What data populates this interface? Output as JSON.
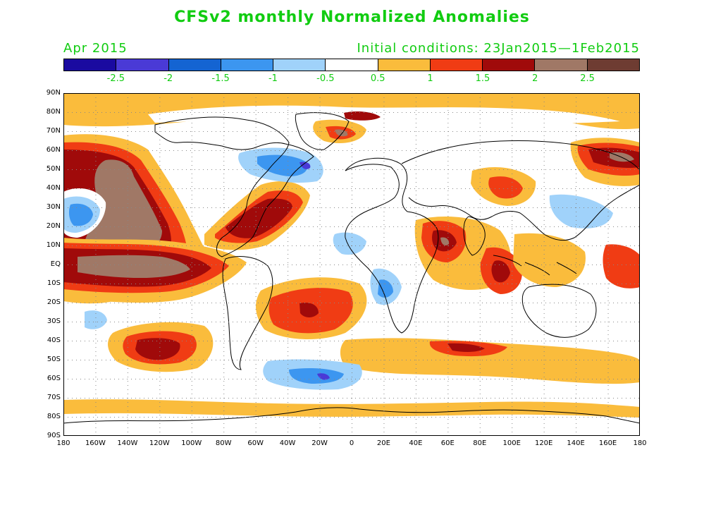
{
  "header": {
    "title": "CFSv2 monthly Normalized Anomalies",
    "month": "Apr 2015",
    "initial_conditions": "Initial conditions: 23Jan2015—1Feb2015"
  },
  "colorbar": {
    "colors": [
      "#1a0aa0",
      "#4a3ad6",
      "#1464d2",
      "#3c96f0",
      "#a0d2fa",
      "#ffffff",
      "#fabc3c",
      "#f03c14",
      "#a00a0a",
      "#a07866",
      "#6e3c32"
    ],
    "labels": [
      "-2.5",
      "-2",
      "-1.5",
      "-1",
      "-0.5",
      "0.5",
      "1",
      "1.5",
      "2",
      "2.5"
    ]
  },
  "map": {
    "variable": "Normalized Anomalies",
    "lat_labels": [
      "90N",
      "80N",
      "70N",
      "60N",
      "50N",
      "40N",
      "30N",
      "20N",
      "10N",
      "EQ",
      "10S",
      "20S",
      "30S",
      "40S",
      "50S",
      "60S",
      "70S",
      "80S",
      "90S"
    ],
    "lon_labels": [
      "180",
      "160W",
      "140W",
      "120W",
      "100W",
      "80W",
      "60W",
      "40W",
      "20W",
      "0",
      "20E",
      "40E",
      "60E",
      "80E",
      "100E",
      "120E",
      "140E",
      "160E",
      "180"
    ],
    "colors": {
      "pos_05": "#fabc3c",
      "pos_1": "#f03c14",
      "pos_15": "#a00a0a",
      "pos_2": "#a07866",
      "pos_25": "#6e3c32",
      "neg_05": "#a0d2fa",
      "neg_1": "#3c96f0",
      "neg_15": "#1464d2",
      "neg_2": "#4a3ad6",
      "neg_25": "#1a0aa0"
    }
  }
}
